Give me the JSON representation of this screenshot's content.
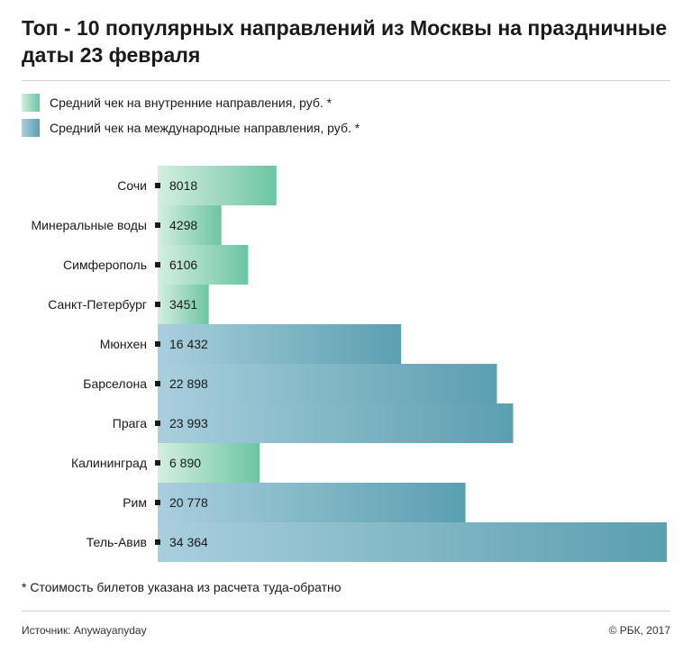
{
  "title": "Топ - 10 популярных направлений из Москвы на праздничные даты 23 февраля",
  "colors": {
    "domestic_light": "#d4eee2",
    "domestic_dark": "#6cc5a3",
    "international_light": "#a9cfdd",
    "international_dark": "#5b9fb0"
  },
  "legend": [
    {
      "key": "domestic",
      "label": "Средний чек на внутренние направления, руб. *"
    },
    {
      "key": "international",
      "label": "Средний чек на международные направления, руб. *"
    }
  ],
  "chart_data": {
    "type": "bar",
    "orientation": "horizontal",
    "categories": [
      "Сочи",
      "Минеральные воды",
      "Симферополь",
      "Санкт-Петербург",
      "Мюнхен",
      "Барселона",
      "Прага",
      "Калининград",
      "Рим",
      "Тель-Авив"
    ],
    "values": [
      8018,
      4298,
      6106,
      3451,
      16432,
      22898,
      23993,
      6890,
      20778,
      34364
    ],
    "value_labels": [
      "8018",
      "4298",
      "6106",
      "3451",
      "16 432",
      "22 898",
      "23 993",
      "6 890",
      "20 778",
      "34 364"
    ],
    "series_type": [
      "domestic",
      "domestic",
      "domestic",
      "domestic",
      "international",
      "international",
      "international",
      "domestic",
      "international",
      "international"
    ],
    "xlim": [
      0,
      34364
    ],
    "grid": false,
    "legend_position": "top-left"
  },
  "footnote": "* Стоимость билетов указана из расчета туда-обратно",
  "source": "Источник: Anywayanyday",
  "copyright": "© РБК, 2017"
}
